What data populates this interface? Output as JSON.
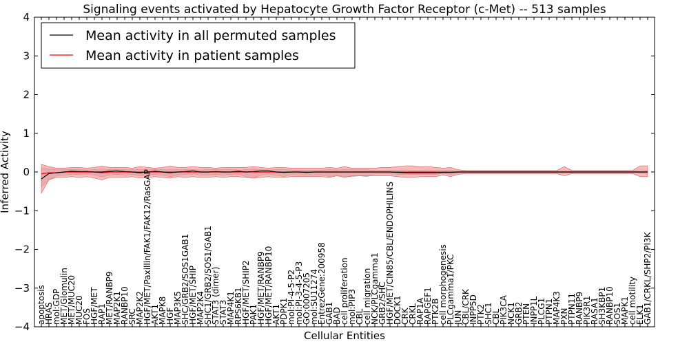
{
  "chart_data": {
    "type": "line",
    "title": "Signaling events activated by Hepatocyte Growth Factor Receptor (c-Met) -- 513 samples",
    "xlabel": "Cellular Entities",
    "ylabel": "Inferred Activity",
    "ylim": [
      -4,
      4
    ],
    "yticks": [
      -4,
      -3,
      -2,
      -1,
      0,
      1,
      2,
      3,
      4
    ],
    "ytick_labels": [
      "−4",
      "−3",
      "−2",
      "−1",
      "0",
      "1",
      "2",
      "3",
      "4"
    ],
    "grid": false,
    "legend_position": "top-left",
    "colors": {
      "permuted": "#000000",
      "patient": "#ff0000",
      "patient_band": "#f08080",
      "permuted_band": "#bbbbbb"
    },
    "categories": [
      "apoptosis",
      "HRAS",
      "mol:GDP",
      "MET/Glomulin",
      "MET/MUC20",
      "MUC20",
      "FOS",
      "HGF/MET",
      "RAP1",
      "MET/RANBP9",
      "MAP2K1",
      "RANBP10",
      "SRC",
      "MAP2K2",
      "HGF/MET/Paxillin/FAK1/FAK12/RasGAP",
      "AKT1",
      "MAPK8",
      "HGF",
      "MAP3K5",
      "SHC/GRB2/SOS1GAB1",
      "HGF/MET/SHIP",
      "MAP2K4",
      "SHC1/GRB2/SOS1/GAB1",
      "STAT3 (dimer)",
      "STAT3",
      "MAP4K1",
      "RPS6KB1",
      "HGF/MET/SHIP2",
      "PAK1",
      "HGF/MET/RANBP9",
      "HGF/MET/RANBP10",
      "AKT1",
      "PDPK1",
      "mol:PI-4-5-P2",
      "mol:PI-3-4-5-P3",
      "GO:0007205",
      "mol:SU11274",
      "EntrezGene:200958",
      "GAB1",
      "BAD",
      "cell proliferation",
      "mol:PIP3",
      "CBL",
      "cell migration",
      "NCK/PLCgamma1",
      "GRB2/SHC",
      "HGF/MET/CIN85/CBL/ENDOPHILINS",
      "DOCK1",
      "CRK",
      "CRKL",
      "RAP1A",
      "RAPGEF1",
      "PTK2B",
      "cell morphogenesis",
      "PLCgamma1/PKC",
      "JUN",
      "CBL/CRK",
      "INPP5D",
      "PTK2",
      "SHC1",
      "CBL",
      "PIK3CA",
      "NCK1",
      "GRB2",
      "PTEN",
      "INPP1L",
      "PLCG1",
      "PTPN1",
      "MAP4K3",
      "PXN",
      "PTPN11",
      "RANBP9",
      "PIK3R1",
      "RASA1",
      "SH3KBP1",
      "RANBP10",
      "SOS1",
      "MAPK1",
      "cell motility",
      "ELK1",
      "GAB1/CRKL/SHP2/PI3K"
    ],
    "series": [
      {
        "name": "Mean activity in all permuted samples",
        "color": "#000000",
        "values": [
          -0.18,
          -0.04,
          -0.02,
          0.0,
          0.02,
          0.01,
          0.01,
          0.0,
          0.0,
          0.02,
          0.03,
          0.01,
          0.0,
          -0.02,
          0.0,
          0.02,
          0.0,
          -0.02,
          0.0,
          0.01,
          0.03,
          0.0,
          0.0,
          0.01,
          0.0,
          0.0,
          0.02,
          0.0,
          0.01,
          0.03,
          0.03,
          0.0,
          -0.01,
          0.0,
          0.0,
          -0.01,
          0.0,
          0.0,
          0.0,
          0.0,
          0.0,
          0.0,
          0.0,
          0.0,
          0.0,
          0.0,
          0.0,
          -0.01,
          -0.02,
          -0.02,
          -0.02,
          -0.02,
          -0.02,
          -0.01,
          -0.01,
          0.0,
          0.0,
          0.0,
          0.0,
          0.0,
          0.0,
          0.0,
          0.0,
          0.0,
          0.0,
          0.0,
          0.0,
          0.0,
          0.0,
          0.0,
          0.0,
          0.0,
          0.0,
          0.0,
          0.0,
          0.0,
          0.0,
          0.0,
          0.0,
          0.0,
          0.0
        ],
        "band_low": [
          -0.38,
          -0.2,
          -0.1,
          -0.08,
          -0.06,
          -0.06,
          -0.05,
          -0.08,
          -0.12,
          -0.08,
          -0.06,
          -0.08,
          -0.06,
          -0.1,
          -0.08,
          -0.06,
          -0.08,
          -0.12,
          -0.08,
          -0.06,
          -0.05,
          -0.08,
          -0.08,
          -0.06,
          -0.08,
          -0.06,
          -0.05,
          -0.12,
          -0.16,
          -0.08,
          -0.05,
          -0.08,
          -0.12,
          -0.06,
          -0.08,
          -0.08,
          -0.08,
          -0.08,
          -0.12,
          -0.08,
          -0.12,
          -0.12,
          -0.1,
          -0.12,
          -0.05,
          -0.05,
          -0.05,
          -0.06,
          -0.06,
          -0.06,
          -0.06,
          -0.06,
          -0.06,
          -0.04,
          -0.06,
          -0.03,
          -0.03,
          -0.03,
          -0.03,
          -0.03,
          -0.03,
          -0.03,
          -0.03,
          -0.03,
          -0.03,
          -0.03,
          -0.03,
          -0.03,
          -0.03,
          -0.03,
          -0.03,
          -0.03,
          -0.03,
          -0.03,
          -0.03,
          -0.03,
          -0.03,
          -0.03,
          -0.03,
          -0.03,
          -0.04
        ],
        "band_high": [
          0.1,
          0.08,
          0.06,
          0.06,
          0.06,
          0.06,
          0.05,
          0.06,
          0.08,
          0.06,
          0.06,
          0.06,
          0.06,
          0.06,
          0.06,
          0.06,
          0.06,
          0.06,
          0.06,
          0.06,
          0.06,
          0.05,
          0.06,
          0.06,
          0.06,
          0.06,
          0.05,
          0.06,
          0.08,
          0.06,
          0.05,
          0.06,
          0.06,
          0.05,
          0.05,
          0.05,
          0.05,
          0.05,
          0.06,
          0.05,
          0.06,
          0.06,
          0.06,
          0.06,
          0.04,
          0.04,
          0.04,
          0.04,
          0.04,
          0.04,
          0.04,
          0.04,
          0.04,
          0.04,
          0.04,
          0.03,
          0.03,
          0.03,
          0.03,
          0.03,
          0.03,
          0.03,
          0.03,
          0.03,
          0.03,
          0.03,
          0.03,
          0.03,
          0.03,
          0.03,
          0.03,
          0.03,
          0.03,
          0.03,
          0.03,
          0.03,
          0.03,
          0.03,
          0.03,
          0.03,
          0.04
        ]
      },
      {
        "name": "Mean activity in patient samples",
        "color": "#ff0000",
        "values": [
          -0.05,
          -0.02,
          -0.02,
          0.0,
          0.0,
          0.0,
          0.0,
          0.0,
          -0.02,
          0.0,
          0.0,
          0.0,
          0.0,
          0.0,
          0.0,
          0.0,
          0.0,
          0.0,
          0.0,
          0.0,
          0.0,
          0.0,
          0.0,
          0.0,
          0.0,
          0.0,
          0.0,
          0.0,
          0.0,
          0.0,
          0.0,
          0.0,
          0.0,
          0.0,
          0.0,
          0.0,
          0.0,
          0.0,
          0.0,
          0.0,
          0.0,
          0.0,
          0.0,
          0.0,
          0.0,
          0.0,
          0.0,
          0.0,
          0.0,
          0.0,
          0.0,
          0.0,
          0.0,
          0.0,
          0.0,
          0.0,
          0.0,
          0.0,
          0.0,
          0.0,
          0.0,
          0.0,
          0.0,
          0.0,
          0.0,
          0.0,
          0.0,
          0.0,
          0.0,
          0.0,
          0.0,
          0.0,
          0.0,
          0.0,
          0.0,
          0.0,
          0.0,
          0.0,
          0.0,
          0.0,
          0.0
        ],
        "band_low": [
          -0.55,
          -0.2,
          -0.14,
          -0.14,
          -0.12,
          -0.14,
          -0.12,
          -0.16,
          -0.2,
          -0.14,
          -0.14,
          -0.14,
          -0.12,
          -0.16,
          -0.14,
          -0.12,
          -0.14,
          -0.16,
          -0.12,
          -0.14,
          -0.12,
          -0.14,
          -0.14,
          -0.12,
          -0.14,
          -0.12,
          -0.12,
          -0.14,
          -0.16,
          -0.14,
          -0.12,
          -0.14,
          -0.14,
          -0.12,
          -0.12,
          -0.12,
          -0.12,
          -0.12,
          -0.14,
          -0.1,
          -0.14,
          -0.1,
          -0.1,
          -0.1,
          -0.1,
          -0.1,
          -0.1,
          -0.12,
          -0.14,
          -0.14,
          -0.12,
          -0.12,
          -0.12,
          -0.08,
          -0.12,
          -0.06,
          -0.04,
          -0.04,
          -0.04,
          -0.04,
          -0.04,
          -0.04,
          -0.04,
          -0.04,
          -0.04,
          -0.04,
          -0.04,
          -0.04,
          -0.04,
          -0.1,
          -0.04,
          -0.04,
          -0.04,
          -0.04,
          -0.04,
          -0.04,
          -0.04,
          -0.04,
          -0.04,
          -0.12,
          -0.12
        ],
        "band_high": [
          0.2,
          0.14,
          0.1,
          0.1,
          0.12,
          0.12,
          0.1,
          0.12,
          0.16,
          0.12,
          0.12,
          0.12,
          0.1,
          0.14,
          0.12,
          0.1,
          0.12,
          0.16,
          0.12,
          0.12,
          0.14,
          0.12,
          0.12,
          0.1,
          0.12,
          0.12,
          0.12,
          0.12,
          0.14,
          0.12,
          0.1,
          0.12,
          0.12,
          0.1,
          0.1,
          0.1,
          0.1,
          0.1,
          0.12,
          0.1,
          0.14,
          0.1,
          0.1,
          0.1,
          0.1,
          0.12,
          0.12,
          0.14,
          0.16,
          0.16,
          0.14,
          0.14,
          0.12,
          0.1,
          0.12,
          0.06,
          0.04,
          0.04,
          0.04,
          0.04,
          0.04,
          0.04,
          0.04,
          0.04,
          0.04,
          0.04,
          0.04,
          0.04,
          0.04,
          0.14,
          0.04,
          0.04,
          0.04,
          0.04,
          0.04,
          0.04,
          0.04,
          0.04,
          0.04,
          0.16,
          0.16
        ]
      }
    ]
  }
}
